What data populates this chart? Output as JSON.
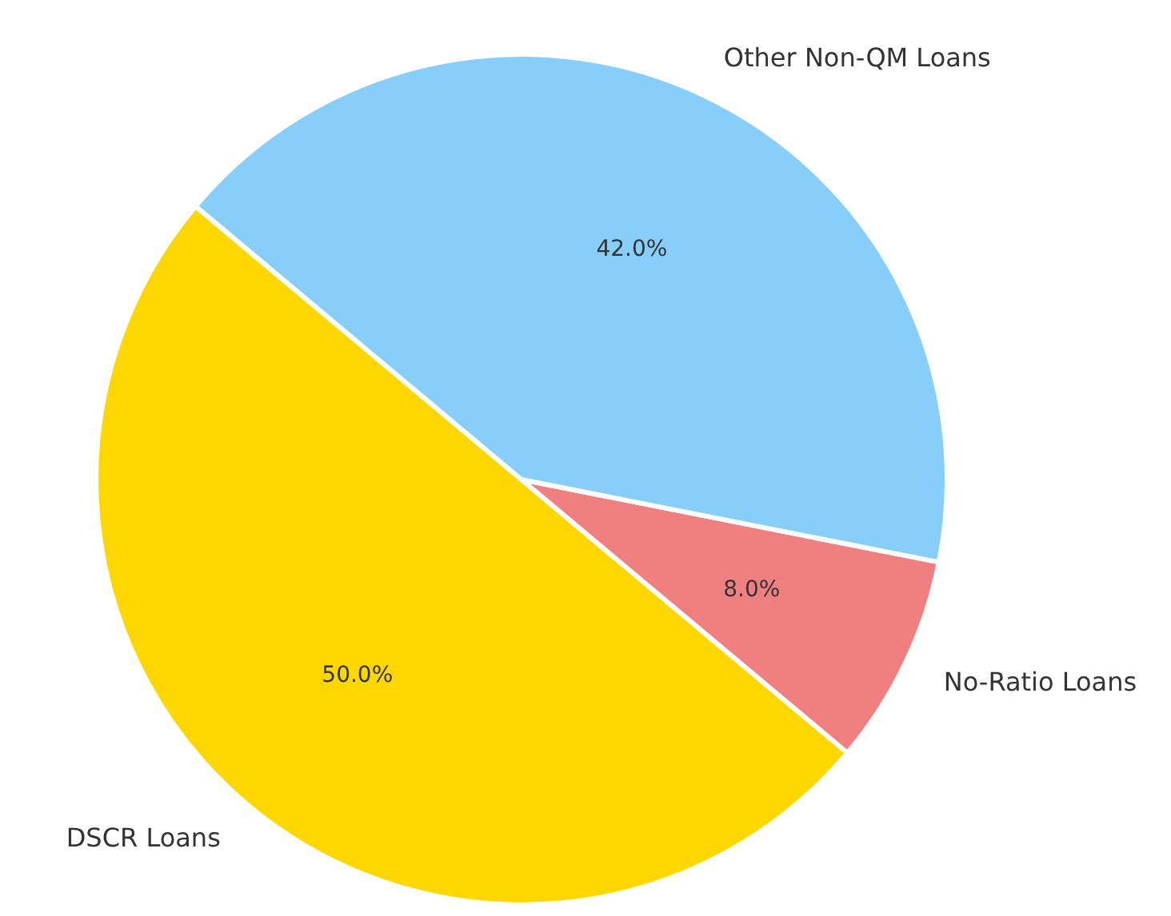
{
  "chart_data": {
    "type": "pie",
    "categories": [
      "DSCR Loans",
      "No-Ratio Loans",
      "Other Non-QM Loans"
    ],
    "values": [
      50,
      8,
      42
    ],
    "colors": [
      "#ffd700",
      "#f08080",
      "#87cefa"
    ],
    "value_labels": [
      "50.0%",
      "8.0%",
      "42.0%"
    ],
    "legend": false
  }
}
